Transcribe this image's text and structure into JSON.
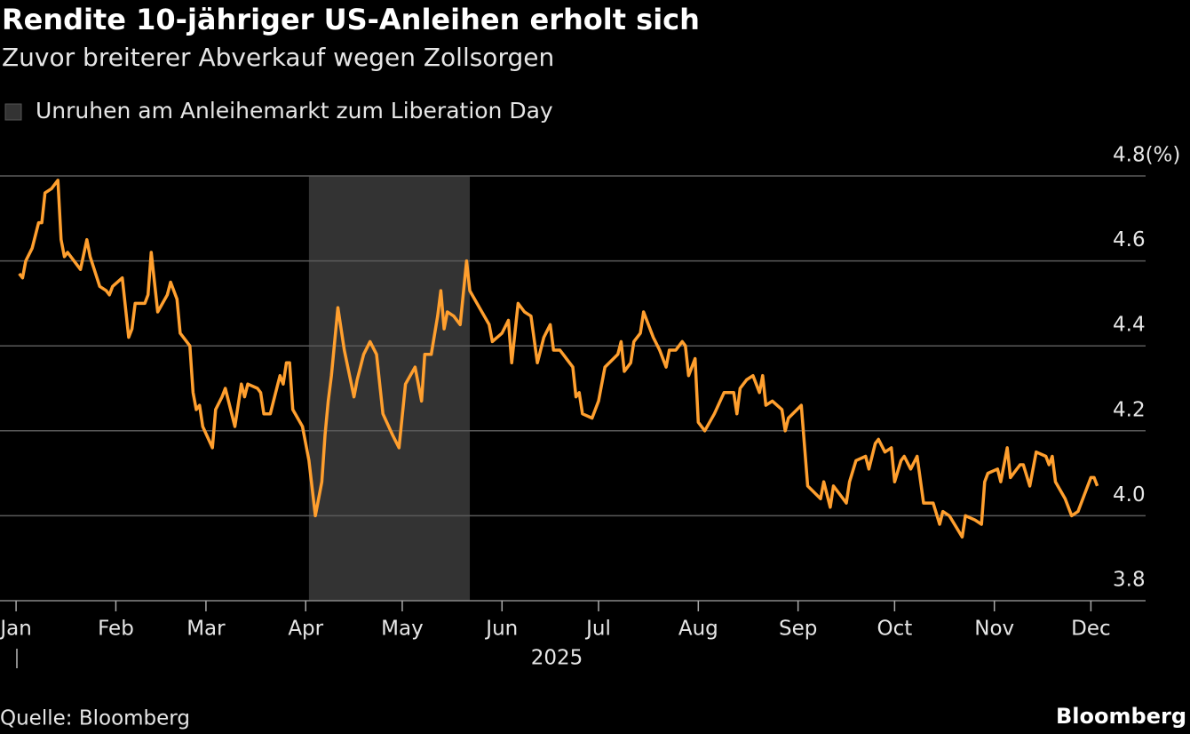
{
  "chart_data": {
    "type": "line",
    "title": "Rendite 10-jähriger US-Anleihen erholt sich",
    "subtitle": "Zuvor breiterer Abverkauf wegen Zollsorgen",
    "xlabel": "2025",
    "source": "Quelle: Bloomberg",
    "brand": "Bloomberg",
    "shade": {
      "label": "Unruhen am Anleihemarkt zum Liberation Day",
      "x": [
        91,
        141
      ],
      "color": "#333333"
    },
    "xlim": [
      -5,
      351
    ],
    "xticks": [
      {
        "value": 0,
        "label": "Jan"
      },
      {
        "value": 31,
        "label": "Feb"
      },
      {
        "value": 59,
        "label": "Mar"
      },
      {
        "value": 90,
        "label": "Apr"
      },
      {
        "value": 120,
        "label": "May"
      },
      {
        "value": 151,
        "label": "Jun"
      },
      {
        "value": 181,
        "label": "Jul"
      },
      {
        "value": 212,
        "label": "Aug"
      },
      {
        "value": 243,
        "label": "Sep"
      },
      {
        "value": 273,
        "label": "Oct"
      },
      {
        "value": 304,
        "label": "Nov"
      },
      {
        "value": 334,
        "label": "Dec"
      }
    ],
    "ylim": [
      3.8,
      4.8
    ],
    "yticks": [
      3.8,
      {
        "value": 4,
        "label": "4.0"
      },
      4.2,
      4.4,
      4.6,
      {
        "value": 4.8,
        "label": "4.8(%)"
      }
    ],
    "grid": true,
    "x": [
      1,
      2,
      3,
      5,
      7,
      8,
      9,
      11,
      13,
      14,
      15,
      16,
      17,
      20,
      22,
      23,
      26,
      28,
      29,
      30,
      33,
      35,
      36,
      37,
      40,
      41,
      42,
      44,
      47,
      48,
      50,
      51,
      54,
      55,
      56,
      57,
      58,
      61,
      62,
      64,
      65,
      66,
      68,
      70,
      71,
      72,
      75,
      76,
      77,
      79,
      80,
      82,
      83,
      84,
      85,
      86,
      89,
      91,
      93,
      95,
      96,
      97,
      98,
      100,
      102,
      105,
      106,
      108,
      110,
      112,
      114,
      117,
      119,
      121,
      124,
      126,
      127,
      129,
      131,
      132,
      133,
      134,
      136,
      138,
      140,
      141,
      144,
      147,
      148,
      151,
      153,
      154,
      156,
      158,
      160,
      162,
      164,
      166,
      167,
      169,
      173,
      174,
      175,
      176,
      179,
      181,
      183,
      187,
      188,
      189,
      191,
      192,
      194,
      195,
      196,
      198,
      200,
      202,
      203,
      205,
      207,
      208,
      209,
      211,
      212,
      214,
      217,
      220,
      222,
      223,
      224,
      225,
      227,
      229,
      231,
      232,
      233,
      235,
      238,
      239,
      240,
      244,
      246,
      250,
      251,
      253,
      254,
      256,
      258,
      259,
      261,
      264,
      265,
      267,
      268,
      270,
      272,
      273,
      275,
      276,
      278,
      280,
      282,
      285,
      287,
      288,
      290,
      294,
      295,
      298,
      300,
      301,
      302,
      305,
      306,
      308,
      309,
      312,
      313,
      315,
      317,
      320,
      321,
      322,
      323,
      326,
      328,
      330,
      331,
      334,
      335,
      336
    ],
    "series": [
      {
        "color": "#ff9f2e",
        "values": [
          4.57,
          4.56,
          4.6,
          4.63,
          4.69,
          4.69,
          4.76,
          4.77,
          4.79,
          4.65,
          4.61,
          4.62,
          4.61,
          4.58,
          4.65,
          4.61,
          4.54,
          4.53,
          4.52,
          4.54,
          4.56,
          4.42,
          4.44,
          4.5,
          4.5,
          4.52,
          4.62,
          4.48,
          4.52,
          4.55,
          4.51,
          4.43,
          4.4,
          4.29,
          4.25,
          4.26,
          4.21,
          4.16,
          4.25,
          4.28,
          4.3,
          4.27,
          4.21,
          4.31,
          4.28,
          4.31,
          4.3,
          4.29,
          4.24,
          4.24,
          4.27,
          4.33,
          4.31,
          4.36,
          4.36,
          4.25,
          4.21,
          4.13,
          4.0,
          4.08,
          4.19,
          4.27,
          4.33,
          4.49,
          4.39,
          4.28,
          4.32,
          4.38,
          4.41,
          4.38,
          4.24,
          4.19,
          4.16,
          4.31,
          4.35,
          4.27,
          4.38,
          4.38,
          4.47,
          4.53,
          4.44,
          4.48,
          4.47,
          4.45,
          4.6,
          4.53,
          4.49,
          4.45,
          4.41,
          4.43,
          4.46,
          4.36,
          4.5,
          4.48,
          4.47,
          4.36,
          4.42,
          4.45,
          4.39,
          4.39,
          4.35,
          4.28,
          4.29,
          4.24,
          4.23,
          4.27,
          4.35,
          4.38,
          4.41,
          4.34,
          4.36,
          4.41,
          4.43,
          4.48,
          4.46,
          4.42,
          4.39,
          4.35,
          4.39,
          4.39,
          4.41,
          4.4,
          4.33,
          4.37,
          4.22,
          4.2,
          4.24,
          4.29,
          4.29,
          4.29,
          4.24,
          4.3,
          4.32,
          4.33,
          4.29,
          4.33,
          4.26,
          4.27,
          4.25,
          4.2,
          4.23,
          4.26,
          4.07,
          4.04,
          4.08,
          4.02,
          4.07,
          4.05,
          4.03,
          4.08,
          4.13,
          4.14,
          4.11,
          4.17,
          4.18,
          4.15,
          4.16,
          4.08,
          4.13,
          4.14,
          4.11,
          4.14,
          4.03,
          4.03,
          3.98,
          4.01,
          4.0,
          3.95,
          4.0,
          3.99,
          3.98,
          4.08,
          4.1,
          4.11,
          4.08,
          4.16,
          4.09,
          4.12,
          4.12,
          4.07,
          4.15,
          4.14,
          4.12,
          4.14,
          4.08,
          4.04,
          4.0,
          4.01,
          4.03,
          4.09,
          4.09,
          4.07
        ]
      }
    ]
  }
}
